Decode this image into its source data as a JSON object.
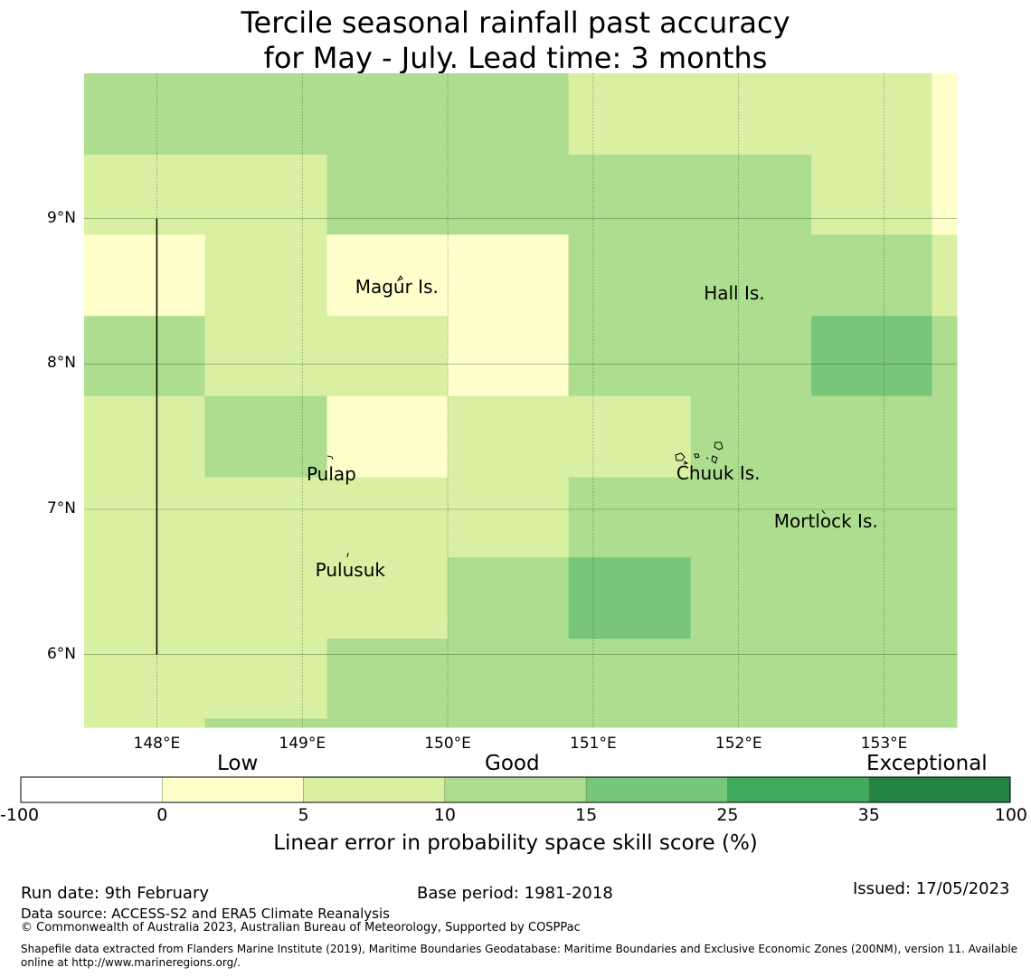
{
  "title": {
    "line1": "Tercile seasonal rainfall past accuracy",
    "line2": "for May - July. Lead time: 3 months"
  },
  "map": {
    "lon_range": [
      147.5,
      153.5
    ],
    "lat_range": [
      5.5,
      10.0
    ],
    "grid": {
      "lon_edges": [
        147.5,
        148.33,
        149.17,
        150.0,
        150.83,
        151.67,
        152.5,
        153.33,
        153.5
      ],
      "lat_edges": [
        10.0,
        9.44,
        8.89,
        8.33,
        7.78,
        7.22,
        6.67,
        6.11,
        5.56,
        5.5
      ],
      "categories": [
        [
          3,
          3,
          3,
          3,
          2,
          2,
          2,
          1
        ],
        [
          2,
          2,
          3,
          3,
          3,
          3,
          2,
          1
        ],
        [
          1,
          2,
          1,
          1,
          3,
          3,
          3,
          2
        ],
        [
          3,
          2,
          2,
          1,
          3,
          3,
          4,
          3
        ],
        [
          2,
          3,
          1,
          2,
          2,
          3,
          3,
          3
        ],
        [
          2,
          2,
          2,
          2,
          3,
          3,
          3,
          3
        ],
        [
          2,
          2,
          2,
          3,
          4,
          3,
          3,
          3
        ],
        [
          2,
          2,
          3,
          3,
          3,
          3,
          3,
          3
        ],
        [
          2,
          3,
          3,
          3,
          3,
          3,
          3,
          3
        ]
      ]
    },
    "lon_ticks": [
      "148°E",
      "149°E",
      "150°E",
      "151°E",
      "152°E",
      "153°E"
    ],
    "lon_tick_values": [
      148,
      149,
      150,
      151,
      152,
      153
    ],
    "lat_ticks": [
      "9°N",
      "8°N",
      "7°N",
      "6°N"
    ],
    "lat_tick_values": [
      9,
      8,
      7,
      6
    ],
    "boundary_line": {
      "lon": 148,
      "lat_from": 6,
      "lat_to": 9
    },
    "islands": [
      {
        "name": "Magur Is.",
        "lon": 149.65,
        "lat": 8.53
      },
      {
        "name": "Hall Is.",
        "lon": 151.97,
        "lat": 8.49
      },
      {
        "name": "Pulap",
        "lon": 149.2,
        "lat": 7.24
      },
      {
        "name": "Chuuk Is.",
        "lon": 151.86,
        "lat": 7.25
      },
      {
        "name": "Mortlock Is.",
        "lon": 152.6,
        "lat": 6.92
      },
      {
        "name": "Pulusuk",
        "lon": 149.33,
        "lat": 6.58
      }
    ]
  },
  "colorbar": {
    "category_labels": [
      "Low",
      "Good",
      "Exceptional"
    ],
    "ticks": [
      "-100",
      "0",
      "5",
      "10",
      "15",
      "25",
      "35",
      "100"
    ],
    "colors": [
      "#ffffff",
      "#ffffcc",
      "#d9f0a3",
      "#addd8e",
      "#78c679",
      "#41ab5d",
      "#238443"
    ],
    "axis_label": "Linear error in probability space skill score (%)"
  },
  "footer": {
    "run_date": "Run date: 9th February",
    "base_period": "Base period: 1981-2018",
    "issued": "Issued: 17/05/2023",
    "data_source": "Data source: ACCESS-S2 and ERA5 Climate Reanalysis",
    "copyright": "© Commonwealth of Australia 2023, Australian Bureau of Meteorology, Supported by COSPPac",
    "shapefile_line1": "Shapefile data extracted from Flanders Marine Institute (2019), Maritime Boundaries Geodatabase: Maritime Boundaries and Exclusive Economic Zones (200NM), version 11. Available",
    "shapefile_line2": "online at http://www.marineregions.org/."
  }
}
